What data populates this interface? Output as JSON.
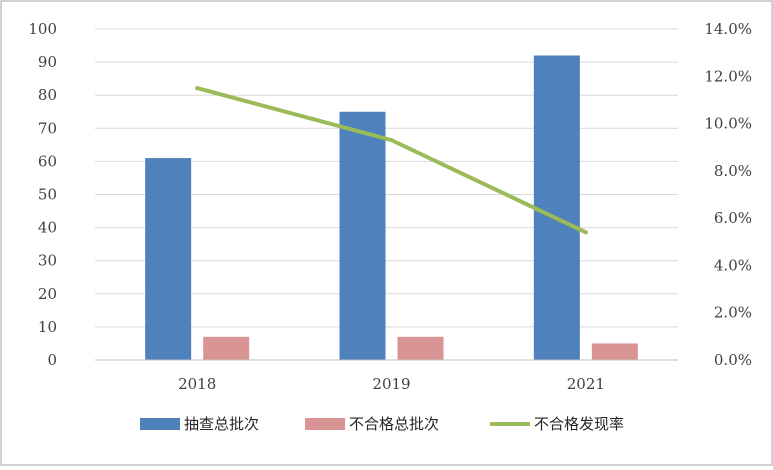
{
  "chart_data": {
    "type": "bar",
    "categories": [
      "2018",
      "2019",
      "2021"
    ],
    "series": [
      {
        "name": "抽查总批次",
        "kind": "bar",
        "axis": "left",
        "color": "#4f81bd",
        "values": [
          61,
          75,
          92
        ]
      },
      {
        "name": "不合格总批次",
        "kind": "bar",
        "axis": "left",
        "color": "#d99594",
        "values": [
          7,
          7,
          5
        ]
      },
      {
        "name": "不合格发现率",
        "kind": "line",
        "axis": "right",
        "color": "#9bbb59",
        "values": [
          0.115,
          0.093,
          0.054
        ]
      }
    ],
    "y_left": {
      "ylim": [
        0,
        100
      ],
      "ticks": [
        "0",
        "10",
        "20",
        "30",
        "40",
        "50",
        "60",
        "70",
        "80",
        "90",
        "100"
      ]
    },
    "y_right": {
      "ylim": [
        0,
        0.14
      ],
      "ticks": [
        "0.0%",
        "2.0%",
        "4.0%",
        "6.0%",
        "8.0%",
        "10.0%",
        "12.0%",
        "14.0%"
      ]
    },
    "grid": true,
    "legend_position": "bottom"
  }
}
